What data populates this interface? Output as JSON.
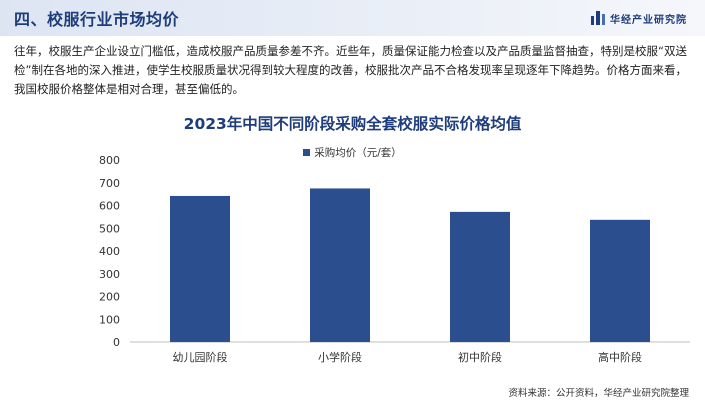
{
  "header": {
    "section_title": "四、校服行业市场均价",
    "brand": "华经产业研究院"
  },
  "intro_text": "往年，校服生产企业设立门槛低，造成校服产品质量参差不齐。近些年，质量保证能力检查以及产品质量监督抽查，特别是校服“双送检”制在各地的深入推进，使学生校服质量状况得到较大程度的改善，校服批次产品不合格发现率呈现逐年下降趋势。价格方面来看，我国校服价格整体是相对合理，甚至偏低的。",
  "colors": {
    "bar": "#2b4f8e",
    "title": "#1f3d7a"
  },
  "chart_data": {
    "type": "bar",
    "title": "2023年中国不同阶段采购全套校服实际价格均值",
    "categories": [
      "幼儿园阶段",
      "小学阶段",
      "初中阶段",
      "高中阶段"
    ],
    "series": [
      {
        "name": "采购均价（元/套）",
        "values": [
          642,
          675,
          572,
          537
        ]
      }
    ],
    "ylim": [
      0,
      800
    ],
    "yticks": [
      0,
      100,
      200,
      300,
      400,
      500,
      600,
      700,
      800
    ],
    "grid": false,
    "legend": "top-center"
  },
  "source": "资料来源：公开资料，华经产业研究院整理"
}
